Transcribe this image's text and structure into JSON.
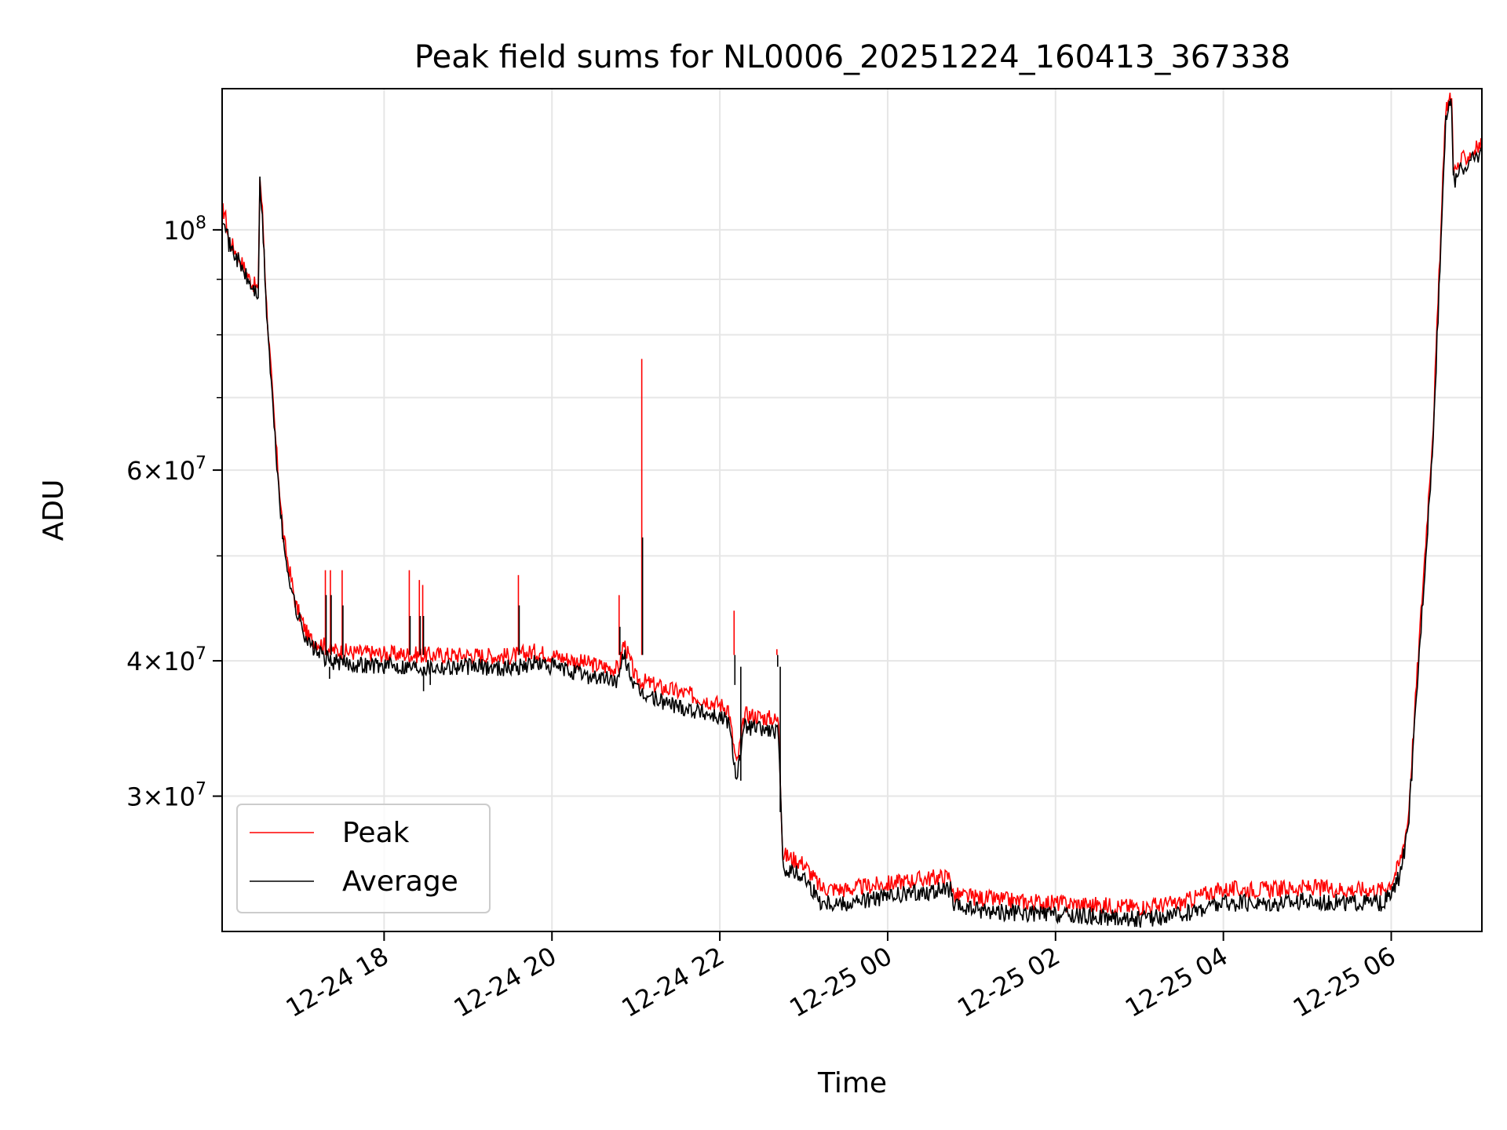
{
  "chart_data": {
    "type": "line",
    "title": "Peak field sums for NL0006_20251224_160413_367338",
    "xlabel": "Time",
    "ylabel": "ADU",
    "yscale": "log",
    "ylim": [
      22500000,
      135000000
    ],
    "xlim_hours": [
      16.07,
      31.08
    ],
    "grid": true,
    "legend_position": "lower-left",
    "x_ticks": [
      {
        "hour": 18,
        "label": "12-24 18"
      },
      {
        "hour": 20,
        "label": "12-24 20"
      },
      {
        "hour": 22,
        "label": "12-24 22"
      },
      {
        "hour": 24,
        "label": "12-25 00"
      },
      {
        "hour": 26,
        "label": "12-25 02"
      },
      {
        "hour": 28,
        "label": "12-25 04"
      },
      {
        "hour": 30,
        "label": "12-25 06"
      }
    ],
    "y_ticks": [
      {
        "value": 100000000,
        "mantissa": "",
        "exponent": "8"
      },
      {
        "value": 60000000,
        "mantissa": "6",
        "exponent": "7"
      },
      {
        "value": 40000000,
        "mantissa": "4",
        "exponent": "7"
      },
      {
        "value": 30000000,
        "mantissa": "3",
        "exponent": "7"
      }
    ],
    "y_minor_ticks": [
      30000000,
      40000000,
      50000000,
      60000000,
      70000000,
      80000000,
      90000000,
      100000000
    ],
    "series": [
      {
        "name": "Peak",
        "color": "#ff0000",
        "hours": [
          16.07,
          16.1,
          16.15,
          16.25,
          16.4,
          16.5,
          16.52,
          16.55,
          16.6,
          16.7,
          16.8,
          16.95,
          17.1,
          17.25,
          17.35,
          17.5,
          17.7,
          18.0,
          18.5,
          19.0,
          19.5,
          19.8,
          20.0,
          20.4,
          20.8,
          20.85,
          20.87,
          21.0,
          21.3,
          21.6,
          21.9,
          22.1,
          22.2,
          22.3,
          22.6,
          22.7,
          22.75,
          23.0,
          23.2,
          23.5,
          23.8,
          24.0,
          24.3,
          24.5,
          24.75,
          24.78,
          25.0,
          25.5,
          26.0,
          26.5,
          27.0,
          27.5,
          27.8,
          28.0,
          28.5,
          29.0,
          29.5,
          29.9,
          30.0,
          30.1,
          30.2,
          30.3,
          30.5,
          30.65,
          30.7,
          30.72,
          30.74,
          30.75,
          30.85,
          31.08
        ],
        "values": [
          104000000,
          104000000,
          98000000,
          95000000,
          90000000,
          88000000,
          112000000,
          104000000,
          85000000,
          65000000,
          52000000,
          45000000,
          42000000,
          41500000,
          41000000,
          40800000,
          40700000,
          40600000,
          40500000,
          40500000,
          40400000,
          40800000,
          40500000,
          39800000,
          39300000,
          41500000,
          41300000,
          38500000,
          37800000,
          37300000,
          36700000,
          36200000,
          32000000,
          35700000,
          35400000,
          35200000,
          26500000,
          26000000,
          24700000,
          24600000,
          24800000,
          24900000,
          25100000,
          25200000,
          25300000,
          24300000,
          24200000,
          24000000,
          23900000,
          23800000,
          23700000,
          23900000,
          24400000,
          24600000,
          24600000,
          24700000,
          24600000,
          24600000,
          25000000,
          26000000,
          28500000,
          38000000,
          66000000,
          130000000,
          132000000,
          132000000,
          115000000,
          113000000,
          116000000,
          120000000
        ]
      },
      {
        "name": "Average",
        "color": "#000000",
        "hours": [
          16.07,
          16.1,
          16.15,
          16.25,
          16.4,
          16.5,
          16.52,
          16.55,
          16.6,
          16.7,
          16.8,
          16.95,
          17.1,
          17.25,
          17.35,
          17.5,
          17.7,
          18.0,
          18.5,
          19.0,
          19.5,
          19.8,
          20.0,
          20.4,
          20.8,
          20.85,
          20.87,
          21.0,
          21.3,
          21.6,
          21.9,
          22.1,
          22.2,
          22.3,
          22.6,
          22.7,
          22.75,
          23.0,
          23.2,
          23.5,
          23.8,
          24.0,
          24.3,
          24.5,
          24.75,
          24.78,
          25.0,
          25.5,
          26.0,
          26.5,
          27.0,
          27.5,
          27.8,
          28.0,
          28.5,
          29.0,
          29.5,
          29.9,
          30.0,
          30.1,
          30.2,
          30.3,
          30.5,
          30.65,
          30.7,
          30.72,
          30.74,
          30.75,
          30.85,
          31.08
        ],
        "values": [
          103000000,
          103000000,
          97000000,
          94000000,
          89000000,
          87000000,
          110000000,
          102000000,
          84000000,
          64000000,
          51000000,
          44500000,
          41500000,
          40500000,
          40000000,
          39800000,
          39700000,
          39600000,
          39500000,
          39500000,
          39400000,
          39800000,
          39500000,
          38800000,
          38300000,
          40500000,
          40300000,
          37500000,
          36700000,
          36200000,
          35700000,
          35200000,
          31300000,
          34800000,
          34500000,
          34300000,
          25800000,
          25300000,
          24000000,
          23900000,
          24100000,
          24200000,
          24400000,
          24500000,
          24600000,
          23700000,
          23600000,
          23400000,
          23300000,
          23200000,
          23100000,
          23300000,
          23700000,
          23900000,
          23900000,
          24000000,
          23900000,
          23900000,
          24300000,
          25300000,
          27800000,
          37000000,
          64000000,
          128000000,
          130000000,
          130000000,
          113000000,
          111000000,
          114000000,
          118000000
        ]
      }
    ],
    "spikes": [
      {
        "hour": 17.3,
        "peak": 48500000,
        "avg": 46000000
      },
      {
        "hour": 17.36,
        "peak": 48500000,
        "avg": 46000000
      },
      {
        "hour": 17.5,
        "peak": 48500000,
        "avg": 45000000
      },
      {
        "hour": 18.3,
        "peak": 48500000,
        "avg": 44000000
      },
      {
        "hour": 18.42,
        "peak": 47500000,
        "avg": 44000000
      },
      {
        "hour": 18.46,
        "peak": 47000000,
        "avg": 44000000
      },
      {
        "hour": 19.6,
        "peak": 48000000,
        "avg": 45000000
      },
      {
        "hour": 20.8,
        "peak": 46000000,
        "avg": 43000000
      },
      {
        "hour": 21.07,
        "peak": 76000000,
        "avg": 52000000
      },
      {
        "hour": 22.17,
        "peak": 44500000,
        "avg": 38000000
      },
      {
        "hour": 22.68,
        "peak": 41000000,
        "avg": 39500000
      }
    ],
    "dips": [
      {
        "hour": 17.35,
        "avg": 38500000
      },
      {
        "hour": 18.47,
        "avg": 37500000
      },
      {
        "hour": 18.55,
        "avg": 38000000
      },
      {
        "hour": 22.25,
        "avg": 31000000
      },
      {
        "hour": 22.72,
        "avg": 29000000
      }
    ]
  }
}
